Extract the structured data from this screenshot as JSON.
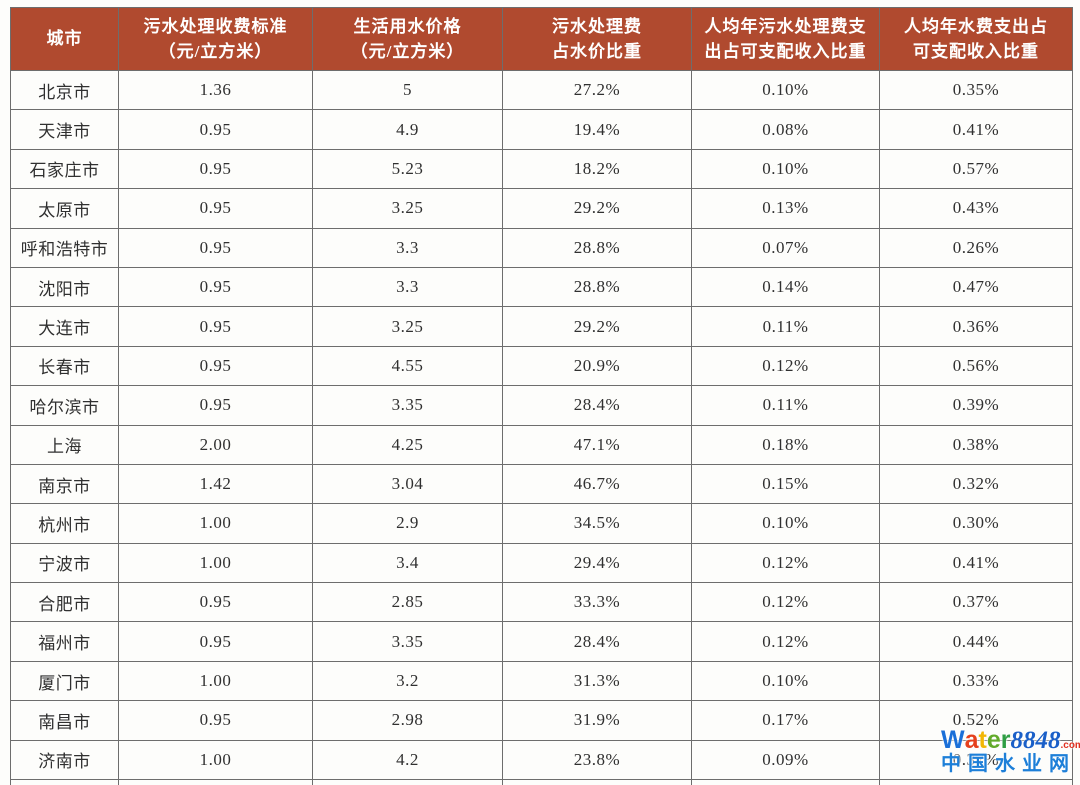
{
  "table": {
    "columns": [
      {
        "label": "城市",
        "sublabel": ""
      },
      {
        "label": "污水处理收费标准",
        "sublabel": "（元/立方米）"
      },
      {
        "label": "生活用水价格",
        "sublabel": "（元/立方米）"
      },
      {
        "label": "污水处理费",
        "sublabel": "占水价比重"
      },
      {
        "label": "人均年污水处理费支",
        "sublabel": "出占可支配收入比重"
      },
      {
        "label": "人均年水费支出占",
        "sublabel": "可支配收入比重"
      }
    ],
    "rows": [
      [
        "北京市",
        "1.36",
        "5",
        "27.2%",
        "0.10%",
        "0.35%"
      ],
      [
        "天津市",
        "0.95",
        "4.9",
        "19.4%",
        "0.08%",
        "0.41%"
      ],
      [
        "石家庄市",
        "0.95",
        "5.23",
        "18.2%",
        "0.10%",
        "0.57%"
      ],
      [
        "太原市",
        "0.95",
        "3.25",
        "29.2%",
        "0.13%",
        "0.43%"
      ],
      [
        "呼和浩特市",
        "0.95",
        "3.3",
        "28.8%",
        "0.07%",
        "0.26%"
      ],
      [
        "沈阳市",
        "0.95",
        "3.3",
        "28.8%",
        "0.14%",
        "0.47%"
      ],
      [
        "大连市",
        "0.95",
        "3.25",
        "29.2%",
        "0.11%",
        "0.36%"
      ],
      [
        "长春市",
        "0.95",
        "4.55",
        "20.9%",
        "0.12%",
        "0.56%"
      ],
      [
        "哈尔滨市",
        "0.95",
        "3.35",
        "28.4%",
        "0.11%",
        "0.39%"
      ],
      [
        "上海",
        "2.00",
        "4.25",
        "47.1%",
        "0.18%",
        "0.38%"
      ],
      [
        "南京市",
        "1.42",
        "3.04",
        "46.7%",
        "0.15%",
        "0.32%"
      ],
      [
        "杭州市",
        "1.00",
        "2.9",
        "34.5%",
        "0.10%",
        "0.30%"
      ],
      [
        "宁波市",
        "1.00",
        "3.4",
        "29.4%",
        "0.12%",
        "0.41%"
      ],
      [
        "合肥市",
        "0.95",
        "2.85",
        "33.3%",
        "0.12%",
        "0.37%"
      ],
      [
        "福州市",
        "0.95",
        "3.35",
        "28.4%",
        "0.12%",
        "0.44%"
      ],
      [
        "厦门市",
        "1.00",
        "3.2",
        "31.3%",
        "0.10%",
        "0.33%"
      ],
      [
        "南昌市",
        "0.95",
        "2.98",
        "31.9%",
        "0.17%",
        "0.52%"
      ],
      [
        "济南市",
        "1.00",
        "4.2",
        "23.8%",
        "0.09%",
        "0.37%"
      ]
    ]
  },
  "watermark": {
    "brand_letters": [
      {
        "char": "W",
        "color": "#1a6fd8"
      },
      {
        "char": "a",
        "color": "#e5401d"
      },
      {
        "char": "t",
        "color": "#f2b705"
      },
      {
        "char": "e",
        "color": "#62aa2a"
      },
      {
        "char": "r",
        "color": "#2f9e44"
      }
    ],
    "brand_number": "8848",
    "brand_tld": ".com",
    "site_name": "中国水业网"
  },
  "style": {
    "header_bg": "#b04a2f",
    "header_text": "#ffffff",
    "body_text": "#303030",
    "border": "#6d6d6d",
    "brand_number_color": "#1a5fc8",
    "brand_tld_color": "#e03020",
    "site_name_color": "#1d7fd8"
  }
}
